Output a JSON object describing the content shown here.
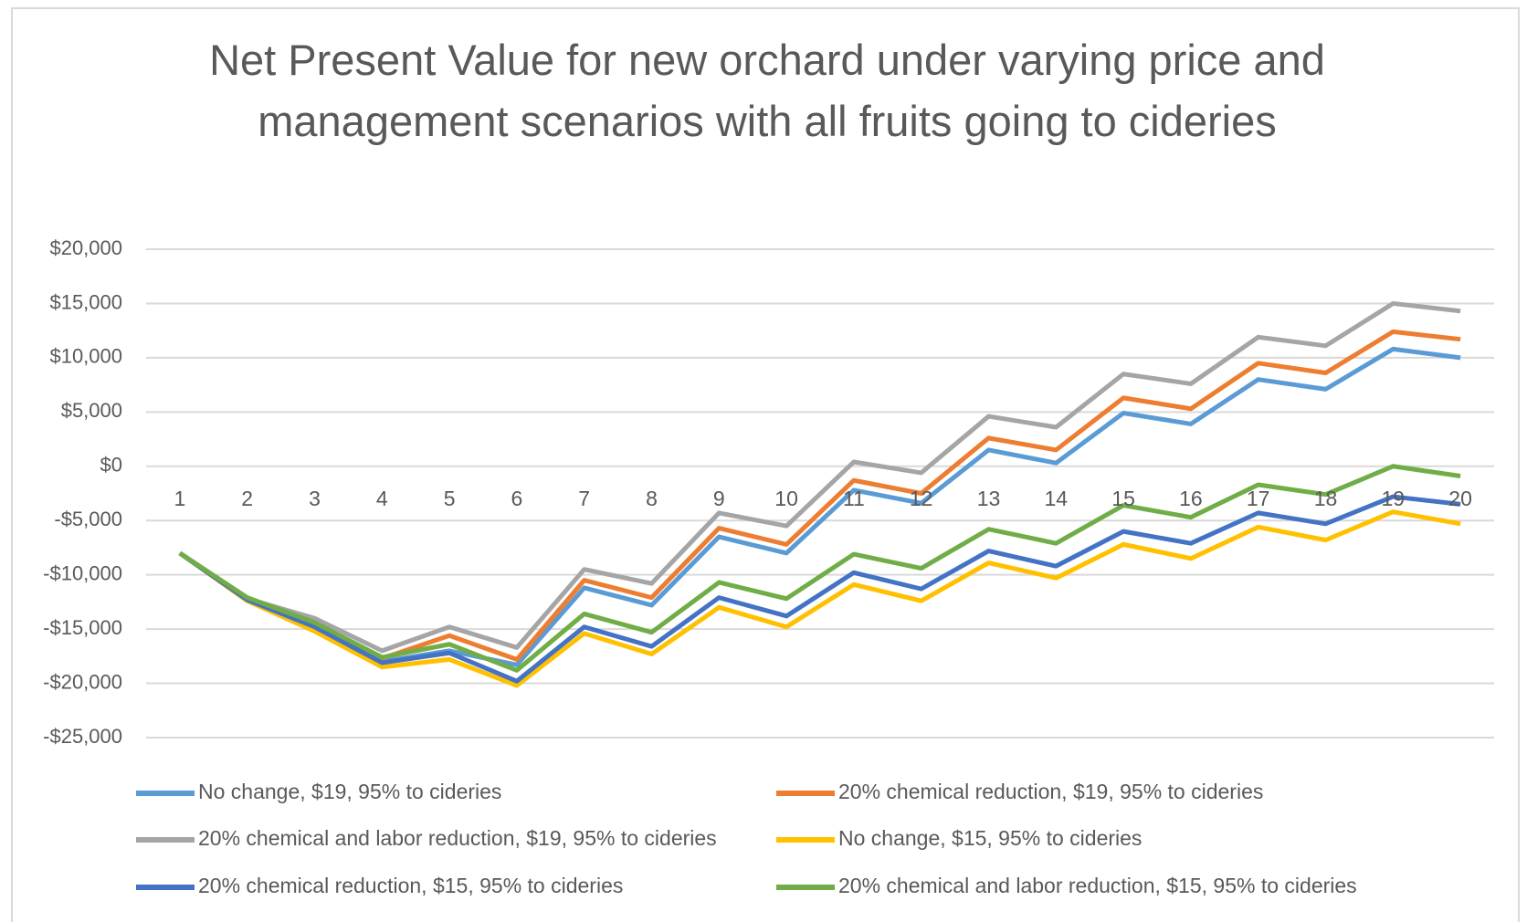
{
  "chart_data": {
    "type": "line",
    "title": "Net Present Value for new orchard under varying price and management scenarios with all fruits going to cideries",
    "categories": [
      "1",
      "2",
      "3",
      "4",
      "5",
      "6",
      "7",
      "8",
      "9",
      "10",
      "11",
      "12",
      "13",
      "14",
      "15",
      "16",
      "17",
      "18",
      "19",
      "20"
    ],
    "ylim": [
      -25000,
      20000
    ],
    "yticks": [
      {
        "value": -25000,
        "label": "-$25,000"
      },
      {
        "value": -20000,
        "label": "-$20,000"
      },
      {
        "value": -15000,
        "label": "-$15,000"
      },
      {
        "value": -10000,
        "label": "-$10,000"
      },
      {
        "value": -5000,
        "label": "-$5,000"
      },
      {
        "value": 0,
        "label": "$0"
      },
      {
        "value": 5000,
        "label": "$5,000"
      },
      {
        "value": 10000,
        "label": "$10,000"
      },
      {
        "value": 15000,
        "label": "$15,000"
      },
      {
        "value": 20000,
        "label": "$20,000"
      }
    ],
    "grid": true,
    "legend": "bottom",
    "series": [
      {
        "name": "No change, $19, 95% to cideries",
        "color": "#5b9bd5",
        "values": [
          -8000,
          -12400,
          -14900,
          -18000,
          -17000,
          -18300,
          -11200,
          -12800,
          -6500,
          -8000,
          -2200,
          -3400,
          1500,
          300,
          4900,
          3900,
          8000,
          7100,
          10800,
          10000
        ]
      },
      {
        "name": "20% chemical reduction, $19, 95% to cideries",
        "color": "#ed7d31",
        "values": [
          -8000,
          -12300,
          -14700,
          -17700,
          -15600,
          -17800,
          -10500,
          -12100,
          -5700,
          -7200,
          -1300,
          -2500,
          2600,
          1500,
          6300,
          5300,
          9500,
          8600,
          12400,
          11700
        ]
      },
      {
        "name": "20% chemical and labor reduction, $19, 95% to cideries",
        "color": "#a5a5a5",
        "values": [
          -8000,
          -12200,
          -14000,
          -17000,
          -14800,
          -16700,
          -9500,
          -10800,
          -4300,
          -5500,
          400,
          -600,
          4600,
          3600,
          8500,
          7600,
          11900,
          11100,
          15000,
          14300
        ]
      },
      {
        "name": "No change, $15, 95% to cideries",
        "color": "#ffc000",
        "values": [
          -8000,
          -12400,
          -15200,
          -18500,
          -17800,
          -20200,
          -15400,
          -17300,
          -13000,
          -14800,
          -10900,
          -12400,
          -8900,
          -10300,
          -7200,
          -8500,
          -5600,
          -6800,
          -4200,
          -5300
        ]
      },
      {
        "name": "20% chemical reduction, $15, 95% to cideries",
        "color": "#4472c4",
        "values": [
          -8000,
          -12300,
          -14800,
          -18100,
          -17200,
          -19800,
          -14800,
          -16600,
          -12100,
          -13800,
          -9800,
          -11300,
          -7800,
          -9200,
          -6000,
          -7100,
          -4300,
          -5300,
          -2800,
          -3500
        ]
      },
      {
        "name": "20% chemical and labor reduction, $15, 95% to cideries",
        "color": "#70ad47",
        "values": [
          -8000,
          -12100,
          -14400,
          -17600,
          -16400,
          -18800,
          -13600,
          -15300,
          -10700,
          -12200,
          -8100,
          -9400,
          -5800,
          -7100,
          -3600,
          -4700,
          -1700,
          -2600,
          0,
          -900
        ]
      }
    ]
  }
}
